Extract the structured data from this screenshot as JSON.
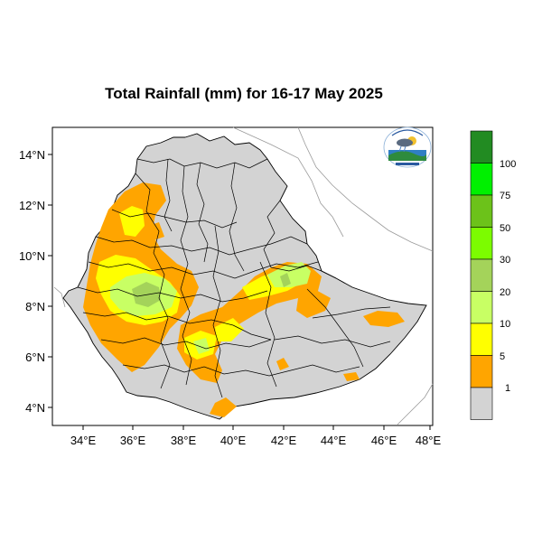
{
  "title": "Total Rainfall (mm) for 16-17 May 2025",
  "axes": {
    "longitude_ticks": [
      "34°E",
      "36°E",
      "38°E",
      "40°E",
      "42°E",
      "44°E",
      "46°E",
      "48°E"
    ],
    "latitude_ticks": [
      "14°N",
      "12°N",
      "10°N",
      "8°N",
      "6°N",
      "4°N"
    ]
  },
  "legend": {
    "levels": [
      "100",
      "75",
      "50",
      "30",
      "20",
      "10",
      "5",
      "1"
    ],
    "colors": [
      "#228b22",
      "#00f000",
      "#6cc21a",
      "#7cfc00",
      "#a4d35a",
      "#c8ff64",
      "#ffff00",
      "#ffa500",
      "#d3d3d3"
    ]
  },
  "colors": {
    "land": "#d3d3d3",
    "light_rain": "#ffa500",
    "moderate_rain": "#ffff00",
    "heavier_rain": "#c8ff64",
    "heavy_rain": "#a4d35a"
  },
  "logo": {
    "name": "ethiopian-meteorology-institute-logo"
  }
}
